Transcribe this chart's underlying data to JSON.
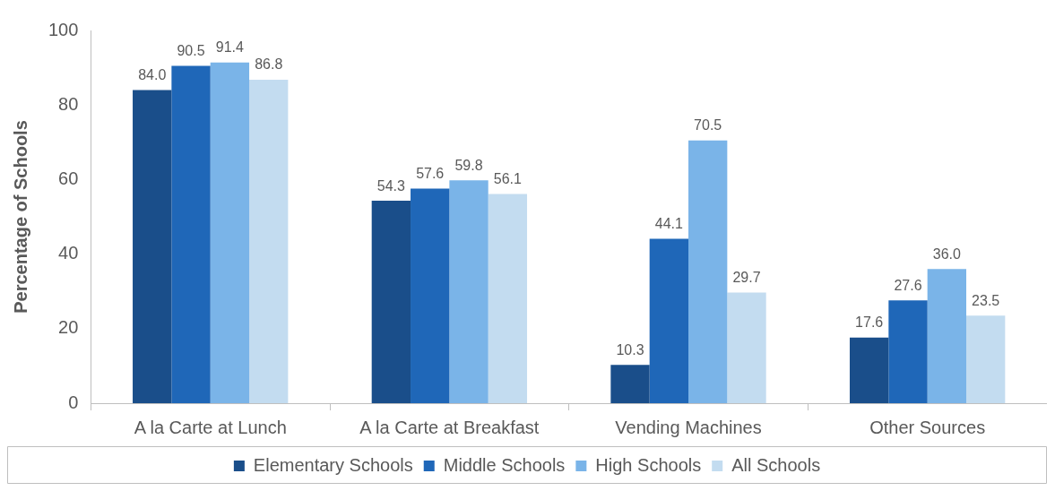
{
  "chart_data": {
    "type": "bar",
    "ylabel": "Percentage of Schools",
    "categories": [
      "A la Carte at Lunch",
      "A la Carte at Breakfast",
      "Vending Machines",
      "Other Sources"
    ],
    "series": [
      {
        "name": "Elementary Schools",
        "color": "#1a4e8a",
        "values": [
          84.0,
          54.3,
          10.3,
          17.6
        ],
        "value_labels": [
          "84.0",
          "54.3",
          "10.3",
          "17.6"
        ]
      },
      {
        "name": "Middle Schools",
        "color": "#1f67b8",
        "values": [
          90.5,
          57.6,
          44.1,
          27.6
        ],
        "value_labels": [
          "90.5",
          "57.6",
          "44.1",
          "27.6"
        ]
      },
      {
        "name": "High Schools",
        "color": "#7ab4e8",
        "values": [
          91.4,
          59.8,
          70.5,
          36.0
        ],
        "value_labels": [
          "91.4",
          "59.8",
          "70.5",
          "36.0"
        ]
      },
      {
        "name": "All Schools",
        "color": "#c3dcf0",
        "values": [
          86.8,
          56.1,
          29.7,
          23.5
        ],
        "value_labels": [
          "86.8",
          "56.1",
          "29.7",
          "23.5"
        ]
      }
    ],
    "ylim": [
      0,
      100
    ],
    "yticks": [
      0,
      20,
      40,
      60,
      80,
      100
    ],
    "grid": false,
    "legend": "bottom"
  }
}
